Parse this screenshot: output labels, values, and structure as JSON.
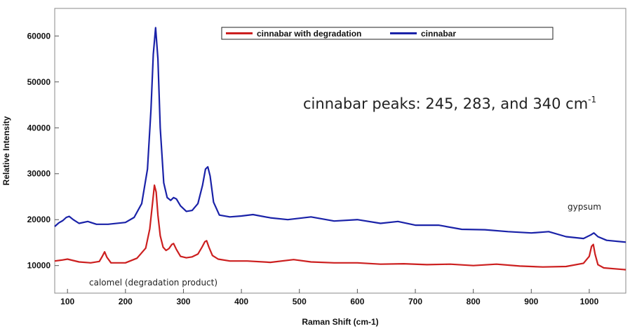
{
  "chart_data": {
    "type": "line",
    "title": "",
    "xlabel": "Raman Shift (cm-1)",
    "ylabel": "Relative Intensity",
    "xlim": [
      78,
      1063
    ],
    "ylim": [
      4000,
      66000
    ],
    "x_ticks": [
      100,
      200,
      300,
      400,
      500,
      600,
      700,
      800,
      900,
      1000
    ],
    "y_ticks": [
      10000,
      20000,
      30000,
      40000,
      50000,
      60000
    ],
    "grid": false,
    "legend_position": "top-center",
    "series": [
      {
        "name": "cinnabar with degradation",
        "color": "#cc1f1f",
        "x": [
          78,
          90,
          100,
          120,
          140,
          155,
          160,
          164,
          168,
          175,
          200,
          220,
          235,
          242,
          247,
          250,
          253,
          256,
          260,
          265,
          270,
          275,
          280,
          283,
          288,
          295,
          305,
          315,
          325,
          332,
          337,
          340,
          344,
          350,
          360,
          380,
          410,
          450,
          490,
          520,
          560,
          600,
          640,
          680,
          720,
          760,
          800,
          840,
          880,
          920,
          960,
          990,
          1000,
          1004,
          1007,
          1010,
          1015,
          1025,
          1063
        ],
        "y": [
          11000,
          11200,
          11400,
          10800,
          10600,
          10900,
          12000,
          13000,
          11800,
          10600,
          10600,
          11600,
          13800,
          18000,
          24000,
          27500,
          26000,
          21000,
          16500,
          14000,
          13300,
          13700,
          14600,
          14800,
          13500,
          12000,
          11700,
          11900,
          12500,
          14000,
          15200,
          15400,
          14000,
          12200,
          11400,
          11000,
          11000,
          10700,
          11300,
          10800,
          10600,
          10600,
          10300,
          10400,
          10200,
          10300,
          10000,
          10300,
          9900,
          9700,
          9800,
          10500,
          12000,
          14200,
          14600,
          12500,
          10200,
          9500,
          9100
        ]
      },
      {
        "name": "cinnabar",
        "color": "#1a22a8",
        "x": [
          78,
          85,
          92,
          98,
          103,
          110,
          120,
          135,
          150,
          170,
          200,
          215,
          228,
          238,
          244,
          248,
          252,
          256,
          260,
          266,
          272,
          278,
          283,
          288,
          295,
          305,
          315,
          325,
          333,
          338,
          342,
          346,
          352,
          362,
          380,
          400,
          420,
          450,
          480,
          520,
          560,
          600,
          640,
          670,
          700,
          740,
          780,
          820,
          860,
          900,
          930,
          960,
          990,
          1003,
          1008,
          1015,
          1030,
          1063
        ],
        "y": [
          18500,
          19300,
          19800,
          20500,
          20700,
          20000,
          19200,
          19600,
          19000,
          19000,
          19400,
          20500,
          23500,
          31000,
          44000,
          56000,
          61800,
          55000,
          40000,
          28000,
          24800,
          24200,
          24800,
          24500,
          23000,
          21800,
          22000,
          23500,
          27500,
          31000,
          31500,
          29500,
          23800,
          21000,
          20600,
          20800,
          21100,
          20400,
          20000,
          20600,
          19700,
          20000,
          19200,
          19600,
          18800,
          18800,
          17900,
          17800,
          17400,
          17100,
          17400,
          16300,
          15900,
          16700,
          17100,
          16300,
          15500,
          15100
        ]
      }
    ],
    "annotations": [
      {
        "text": "cinnabar peaks: 245, 283, and 340 cm",
        "superscript": "-1"
      },
      {
        "text": "gypsum"
      },
      {
        "text": "calomel (degradation product)"
      }
    ]
  }
}
